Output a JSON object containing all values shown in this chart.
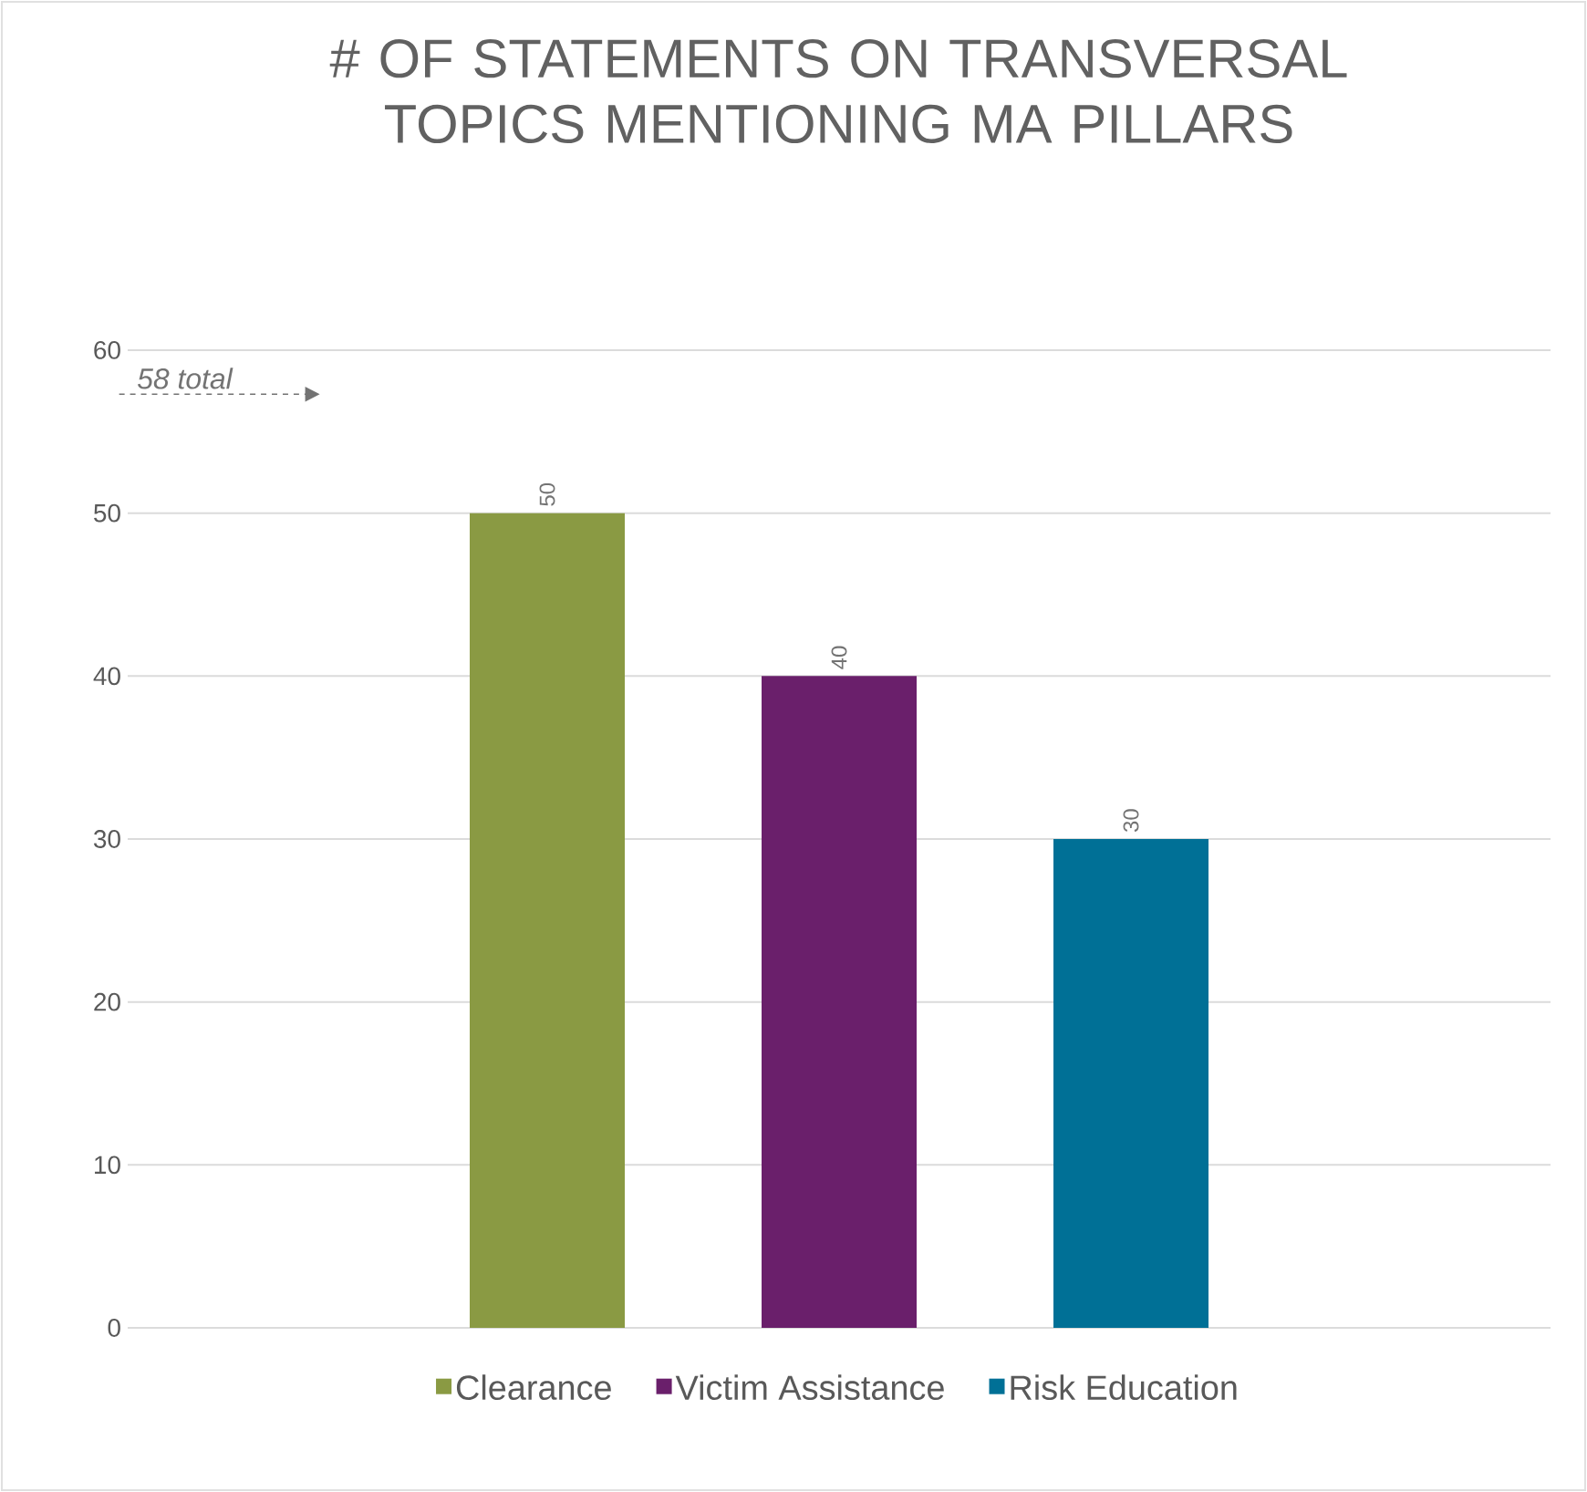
{
  "chart_data": {
    "type": "bar",
    "title": "# OF STATEMENTS ON TRANSVERSAL TOPICS MENTIONING MA PILLARS",
    "categories": [
      null
    ],
    "series": [
      {
        "name": "Clearance",
        "color": "#8a9a43",
        "values": [
          50
        ]
      },
      {
        "name": "Victim Assistance",
        "color": "#6a1f6b",
        "values": [
          40
        ]
      },
      {
        "name": "Risk Education",
        "color": "#007096",
        "values": [
          30
        ]
      }
    ],
    "ylim": [
      0,
      60
    ],
    "yticks": [
      0,
      10,
      20,
      30,
      40,
      50,
      60
    ],
    "grid": "y",
    "legend": "bottom",
    "data_labels": true,
    "tick_labels": "y",
    "annotations": [
      "58 total"
    ]
  }
}
